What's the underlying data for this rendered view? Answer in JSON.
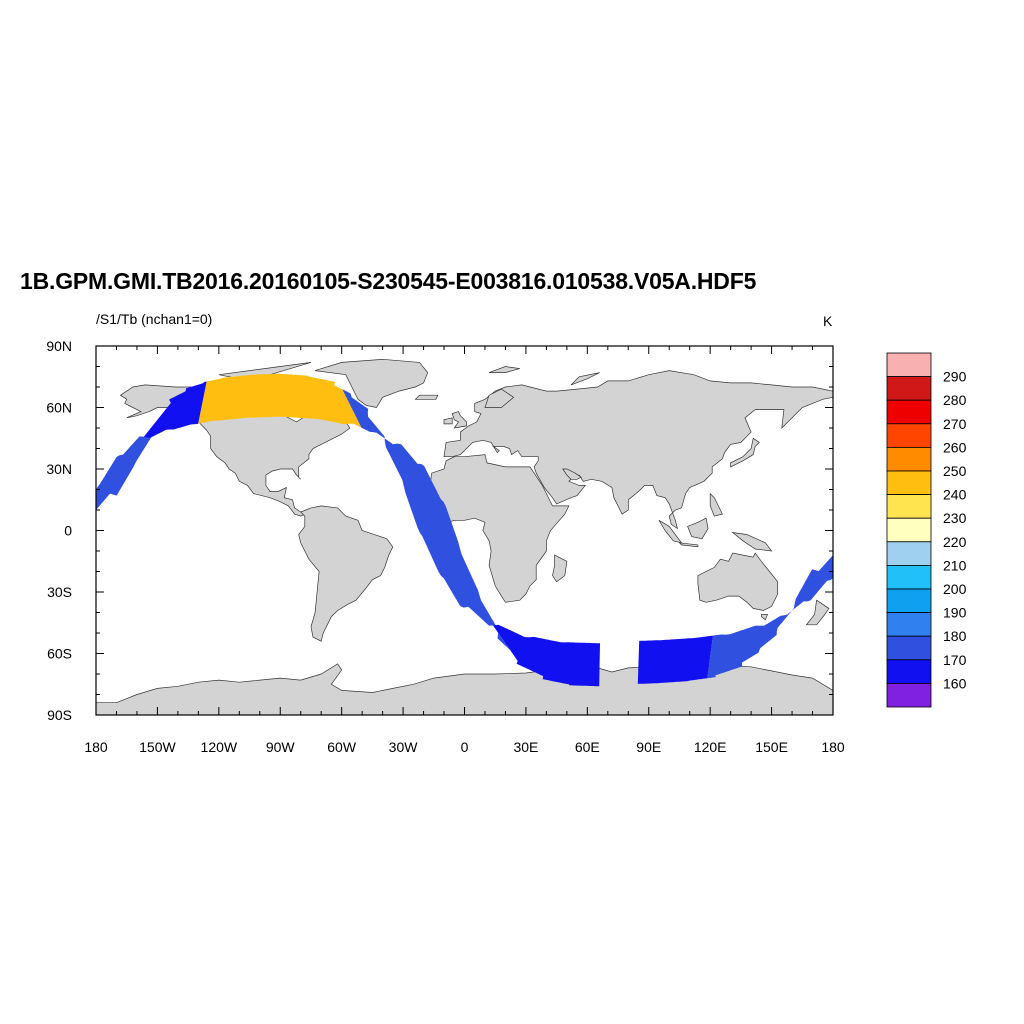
{
  "title": "1B.GPM.GMI.TB2016.20160105-S230545-E003816.010538.V05A.HDF5",
  "subtitle": "/S1/Tb (nchan1=0)",
  "units": "K",
  "map": {
    "projection": "cylindrical-equidistant",
    "lon_range": [
      -180,
      180
    ],
    "lat_range": [
      -90,
      90
    ],
    "land_color": "#d3d3d3",
    "ocean_color": "#ffffff",
    "lon_ticks": [
      {
        "value": -180,
        "label": "180"
      },
      {
        "value": -150,
        "label": "150W"
      },
      {
        "value": -120,
        "label": "120W"
      },
      {
        "value": -90,
        "label": "90W"
      },
      {
        "value": -60,
        "label": "60W"
      },
      {
        "value": -30,
        "label": "30W"
      },
      {
        "value": 0,
        "label": "0"
      },
      {
        "value": 30,
        "label": "30E"
      },
      {
        "value": 60,
        "label": "60E"
      },
      {
        "value": 90,
        "label": "90E"
      },
      {
        "value": 120,
        "label": "120E"
      },
      {
        "value": 150,
        "label": "150E"
      },
      {
        "value": 180,
        "label": "180"
      }
    ],
    "lat_ticks": [
      {
        "value": 90,
        "label": "90N"
      },
      {
        "value": 60,
        "label": "60N"
      },
      {
        "value": 30,
        "label": "30N"
      },
      {
        "value": 0,
        "label": "0"
      },
      {
        "value": -30,
        "label": "30S"
      },
      {
        "value": -60,
        "label": "60S"
      },
      {
        "value": -90,
        "label": "90S"
      }
    ]
  },
  "colorbar": {
    "labels": [
      "290",
      "280",
      "270",
      "260",
      "250",
      "240",
      "230",
      "220",
      "210",
      "200",
      "190",
      "180",
      "170",
      "160"
    ],
    "colors": [
      "#f8b0b0",
      "#d01818",
      "#ee0000",
      "#ff4500",
      "#ff8c00",
      "#ffbe10",
      "#ffe450",
      "#ffffc0",
      "#a0d0f0",
      "#22c0f8",
      "#10a0f0",
      "#3080f0",
      "#3050e0",
      "#1010f0",
      "#8020e0"
    ]
  },
  "swath": {
    "centerline": [
      [
        -180,
        10
      ],
      [
        -170,
        27
      ],
      [
        -160,
        43
      ],
      [
        -150,
        54
      ],
      [
        -140,
        59
      ],
      [
        -130,
        62
      ],
      [
        -120,
        64
      ],
      [
        -105,
        65.5
      ],
      [
        -90,
        66
      ],
      [
        -75,
        65
      ],
      [
        -60,
        62
      ],
      [
        -50,
        57
      ],
      [
        -40,
        50
      ],
      [
        -30,
        38
      ],
      [
        -20,
        18
      ],
      [
        -12,
        -5
      ],
      [
        -2,
        -27
      ],
      [
        8,
        -44
      ],
      [
        20,
        -55
      ],
      [
        35,
        -62
      ],
      [
        50,
        -65
      ],
      [
        66,
        -65.5
      ],
      [
        80,
        -64.5
      ],
      [
        95,
        -64
      ],
      [
        110,
        -63
      ],
      [
        125,
        -61
      ],
      [
        140,
        -56
      ],
      [
        150,
        -50
      ],
      [
        160,
        -42
      ],
      [
        170,
        -30
      ],
      [
        180,
        -12
      ]
    ],
    "segments": [
      {
        "lon_range": [
          -180,
          -150
        ],
        "value": 175
      },
      {
        "lon_range": [
          -150,
          -128
        ],
        "value": 163
      },
      {
        "lon_range": [
          -128,
          -55
        ],
        "value": 245
      },
      {
        "lon_range": [
          -55,
          20
        ],
        "value": 172
      },
      {
        "lon_range": [
          20,
          66
        ],
        "value": 163
      },
      {
        "lon_range": [
          85,
          120
        ],
        "value": 168
      },
      {
        "lon_range": [
          120,
          180
        ],
        "value": 174
      }
    ]
  }
}
